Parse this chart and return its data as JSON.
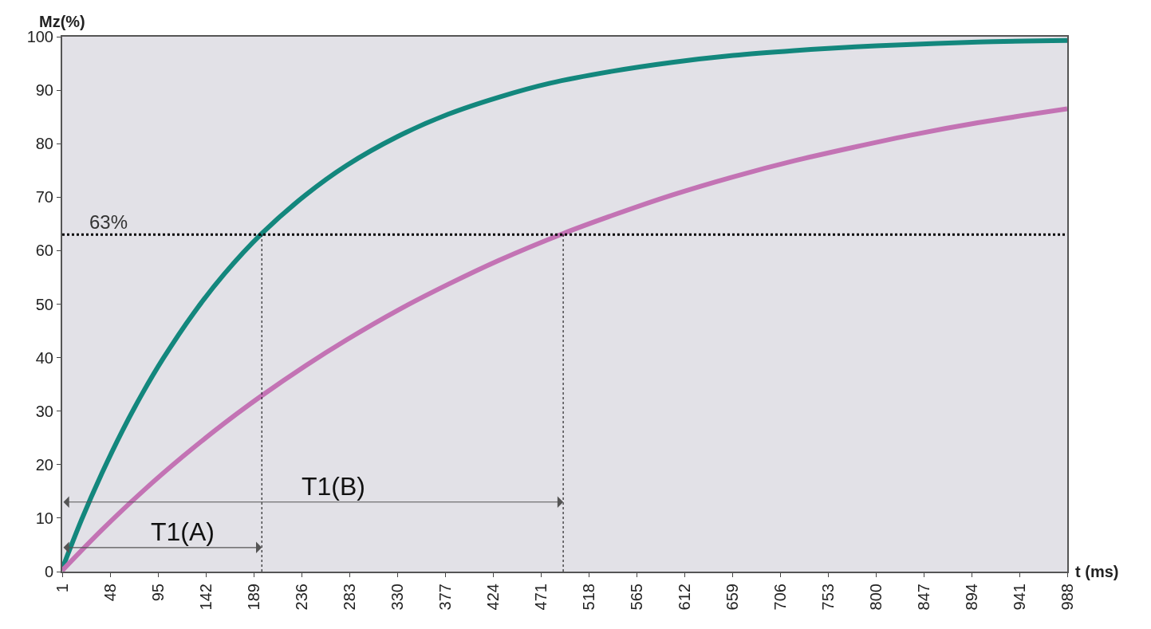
{
  "chart_data": {
    "type": "line",
    "xlabel": "t (ms)",
    "ylabel": "Mz(%)",
    "xlim": [
      1,
      988
    ],
    "xticks": [
      1,
      48,
      95,
      142,
      189,
      236,
      283,
      330,
      377,
      424,
      471,
      518,
      565,
      612,
      659,
      706,
      753,
      800,
      847,
      894,
      941,
      988
    ],
    "ylim": [
      0,
      100
    ],
    "yticks": [
      0,
      10,
      20,
      30,
      40,
      50,
      60,
      70,
      80,
      90,
      100
    ],
    "grid": false,
    "marker": "none",
    "line_style": "solid",
    "series": [
      {
        "color": "#13877d",
        "x": [
          1,
          20,
          40,
          60,
          80,
          100,
          130,
          160,
          197,
          240,
          280,
          330,
          380,
          430,
          480,
          540,
          600,
          660,
          720,
          780,
          840,
          900,
          988
        ],
        "values": [
          0.5,
          9.7,
          18.4,
          26.3,
          33.4,
          39.8,
          48.3,
          55.6,
          63.2,
          70.4,
          75.9,
          81.3,
          85.5,
          88.7,
          91.3,
          93.5,
          95.2,
          96.5,
          97.4,
          98.1,
          98.6,
          99.0,
          99.3
        ]
      },
      {
        "color": "#c373b4",
        "x": [
          1,
          40,
          80,
          120,
          160,
          197,
          240,
          280,
          330,
          380,
          430,
          493,
          540,
          600,
          660,
          720,
          780,
          840,
          900,
          988
        ],
        "values": [
          0.2,
          7.8,
          15.0,
          21.6,
          27.7,
          32.9,
          38.5,
          43.3,
          48.8,
          53.7,
          58.2,
          63.2,
          66.5,
          70.4,
          73.8,
          76.8,
          79.4,
          81.8,
          83.9,
          86.5
        ]
      }
    ],
    "ref_lines": [
      {
        "axis": "y",
        "value": 63,
        "label": "63%",
        "color": "#000000",
        "line_style": "dotted"
      },
      {
        "axis": "x",
        "value": 197,
        "color": "#000000",
        "line_style": "dotted"
      },
      {
        "axis": "x",
        "value": 493,
        "color": "#000000",
        "line_style": "dotted"
      }
    ],
    "annotations": [
      "T1(A)",
      "T1(B)"
    ]
  }
}
